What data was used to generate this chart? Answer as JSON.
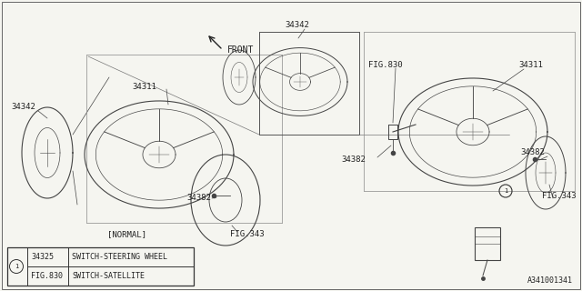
{
  "background_color": "#f5f5f0",
  "line_color": "#444444",
  "text_color": "#222222",
  "diagram_label": "A341001341",
  "front_label": "FRONT",
  "normal_label": "[NORMAL]",
  "legend_items": [
    {
      "part": "34325",
      "description": "SWITCH-STEERING WHEEL"
    },
    {
      "part": "FIG.830",
      "description": "SWITCH-SATELLITE"
    }
  ],
  "figsize": [
    6.4,
    3.2
  ],
  "dpi": 100
}
